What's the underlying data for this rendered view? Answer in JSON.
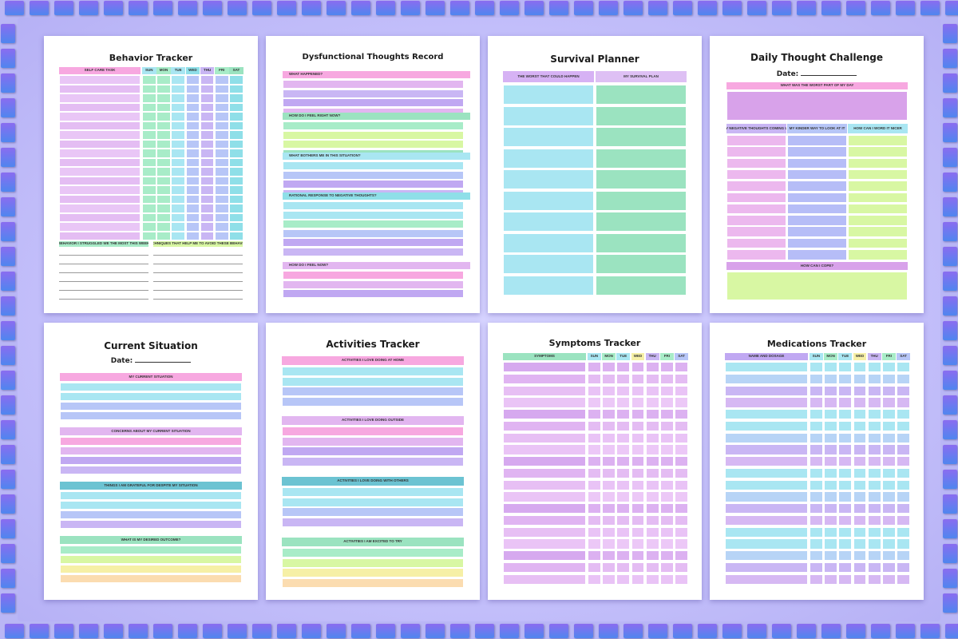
{
  "colors": {
    "pink": "#f7a8e0",
    "lilac": "#e2b6f0",
    "lavender": "#c9b6f4",
    "purple": "#c0a8f2",
    "blue": "#b7c6f7",
    "cyan": "#a9e6f2",
    "teal": "#8fdfe8",
    "mint": "#a8ecc8",
    "green": "#9be3c0",
    "lime": "#d8f7a3",
    "yellow": "#f6f0a6",
    "peach": "#fbdcb0",
    "steel": "#6cc3d2",
    "orchid": "#d8a2ea",
    "tile": "#7a74ef"
  },
  "days": [
    "SUN",
    "MON",
    "TUE",
    "WED",
    "THU",
    "FRI",
    "SAT"
  ],
  "pages": {
    "behavior": {
      "title": "Behavior Tracker",
      "task_header": "SELF CARE TASK",
      "box1": "BEHAVIOR I STRUGGLED WE THE MOST THIS WEEK",
      "box2": "TECHNIQUES THAT HELP ME TO AVOID THESE BEHAVIOR"
    },
    "dysfunctional": {
      "title": "Dysfunctional Thoughts Record",
      "sections": [
        "WHAT HAPPENED?",
        "HOW DO I FEEL RIGHT NOW?",
        "WHAT BOTHERS ME IN THIS SITUATION?",
        "RATIONAL RESPONSE TO NEGATIVE THOUGHTS?",
        "HOW DO I FEEL NOW?"
      ]
    },
    "survival": {
      "title": "Survival Planner",
      "col1": "THE WORST THAT COULD HAPPEN",
      "col2": "MY SURVIVAL PLAN"
    },
    "challenge": {
      "title": "Daily Thought Challenge",
      "date_label": "Date:",
      "worst": "WHAT WAS THE WORST PART OF MY DAY",
      "col1": "MY NEGATIVE THOUGHTS COMING UP",
      "col2": "MY KINDER WAY TO LOOK AT IT",
      "col3": "HOW CAN I WORD IT NICER",
      "cope": "HOW CAN I COPE?"
    },
    "current": {
      "title": "Current Situation",
      "date_label": "Date:",
      "sections": [
        "MY CURRENT SITUATION",
        "CONCERNS ABOUT MY CURRENT SITUATION",
        "THINGS I AM GRATEFUL FOR DESPITE MY SITUATION",
        "WHAT IS MY DESIRED OUTCOME?"
      ]
    },
    "activities": {
      "title": "Activities Tracker",
      "sections": [
        "ACTIVITIES I LOVE DOING AT HOME",
        "ACTIVITIES I LOVE DOING OUTSIDE",
        "ACTIVITIES I LOVE DOING WITH OTHERS",
        "ACTIVITIES I AM EXCITED TO TRY"
      ]
    },
    "symptoms": {
      "title": "Symptoms Tracker",
      "header": "SYMPTOMS"
    },
    "medications": {
      "title": "Medications  Tracker",
      "header": "NAME AND DOSAGE"
    }
  }
}
